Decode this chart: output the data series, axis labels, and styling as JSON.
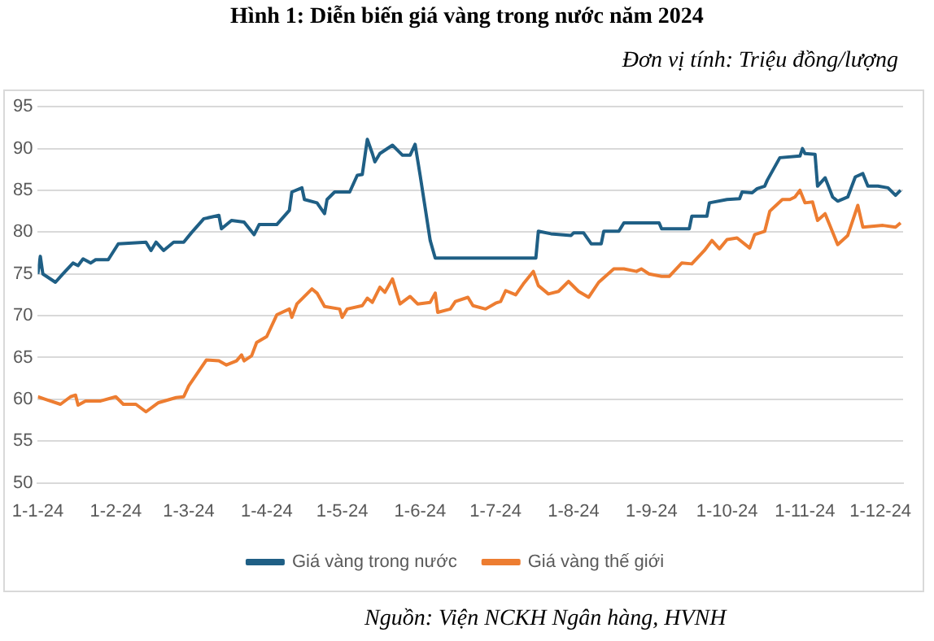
{
  "chart_data": {
    "type": "line",
    "title": "Hình  1: Diễn biến giá vàng trong nước năm 2024",
    "subtitle": "Đơn vị tính: Triệu đồng/lượng",
    "annotations": [
      "Nguồn: Viện NCKH Ngân hàng, HVNH"
    ],
    "xlim": [
      "2024-01-01",
      "2024-12-10"
    ],
    "xticks": [
      {
        "value": "2024-01-01",
        "label": "1-1-24"
      },
      {
        "value": "2024-02-01",
        "label": "1-2-24"
      },
      {
        "value": "2024-03-01",
        "label": "1-3-24"
      },
      {
        "value": "2024-04-01",
        "label": "1-4-24"
      },
      {
        "value": "2024-05-01",
        "label": "1-5-24"
      },
      {
        "value": "2024-06-01",
        "label": "1-6-24"
      },
      {
        "value": "2024-07-01",
        "label": "1-7-24"
      },
      {
        "value": "2024-08-01",
        "label": "1-8-24"
      },
      {
        "value": "2024-09-01",
        "label": "1-9-24"
      },
      {
        "value": "2024-10-01",
        "label": "1-10-24"
      },
      {
        "value": "2024-11-01",
        "label": "1-11-24"
      },
      {
        "value": "2024-12-01",
        "label": "1-12-24"
      }
    ],
    "ylim": [
      50,
      95
    ],
    "yticks": [
      50,
      55,
      60,
      65,
      70,
      75,
      80,
      85,
      90,
      95
    ],
    "grid": "y",
    "legend": "bottom",
    "marker": "none",
    "line_style": "solid",
    "series": [
      {
        "name": "Giá vàng trong nước",
        "color": "#1f5f85",
        "x": [
          "2024-01-01",
          "2024-01-02",
          "2024-01-03",
          "2024-01-08",
          "2024-01-11",
          "2024-01-15",
          "2024-01-17",
          "2024-01-19",
          "2024-01-22",
          "2024-01-24",
          "2024-01-29",
          "2024-02-02",
          "2024-02-13",
          "2024-02-15",
          "2024-02-17",
          "2024-02-20",
          "2024-02-24",
          "2024-02-28",
          "2024-03-02",
          "2024-03-07",
          "2024-03-13",
          "2024-03-14",
          "2024-03-18",
          "2024-03-23",
          "2024-03-27",
          "2024-03-29",
          "2024-04-05",
          "2024-04-10",
          "2024-04-11",
          "2024-04-15",
          "2024-04-16",
          "2024-04-21",
          "2024-04-24",
          "2024-04-25",
          "2024-04-28",
          "2024-05-04",
          "2024-05-07",
          "2024-05-09",
          "2024-05-11",
          "2024-05-13",
          "2024-05-14",
          "2024-05-16",
          "2024-05-21",
          "2024-05-25",
          "2024-05-28",
          "2024-05-30",
          "2024-06-01",
          "2024-06-05",
          "2024-06-07",
          "2024-07-17",
          "2024-07-18",
          "2024-07-23",
          "2024-07-31",
          "2024-08-01",
          "2024-08-05",
          "2024-08-08",
          "2024-08-12",
          "2024-08-13",
          "2024-08-19",
          "2024-08-21",
          "2024-09-04",
          "2024-09-05",
          "2024-09-16",
          "2024-09-17",
          "2024-09-23",
          "2024-09-24",
          "2024-10-01",
          "2024-10-06",
          "2024-10-07",
          "2024-10-11",
          "2024-10-13",
          "2024-10-16",
          "2024-10-17",
          "2024-10-22",
          "2024-10-30",
          "2024-10-31",
          "2024-11-01",
          "2024-11-05",
          "2024-11-06",
          "2024-11-09",
          "2024-11-12",
          "2024-11-14",
          "2024-11-18",
          "2024-11-21",
          "2024-11-24",
          "2024-11-26",
          "2024-11-30",
          "2024-12-04",
          "2024-12-07",
          "2024-12-09"
        ],
        "values": [
          75.0,
          77.1,
          75.0,
          74.0,
          75.0,
          76.3,
          76.0,
          76.8,
          76.3,
          76.7,
          76.7,
          78.6,
          78.8,
          77.8,
          78.8,
          77.8,
          78.8,
          78.8,
          79.9,
          81.6,
          82.0,
          80.4,
          81.4,
          81.2,
          79.7,
          80.9,
          80.9,
          82.6,
          84.8,
          85.3,
          83.9,
          83.5,
          82.2,
          83.9,
          84.8,
          84.8,
          86.8,
          86.9,
          91.1,
          89.4,
          88.4,
          89.4,
          90.4,
          89.2,
          89.2,
          90.5,
          86.8,
          79.0,
          76.9,
          76.9,
          80.1,
          79.8,
          79.6,
          79.9,
          79.9,
          78.6,
          78.6,
          80.1,
          80.1,
          81.1,
          81.1,
          80.4,
          80.4,
          81.9,
          81.9,
          83.5,
          83.9,
          84.0,
          84.8,
          84.7,
          85.2,
          85.5,
          86.2,
          88.9,
          89.1,
          90.0,
          89.4,
          89.3,
          85.5,
          86.5,
          84.2,
          83.7,
          84.2,
          86.6,
          87.0,
          85.5,
          85.5,
          85.3,
          84.4,
          85.0
        ]
      },
      {
        "name": "Giá vàng thế giới",
        "color": "#ed7d31",
        "x": [
          "2024-01-01",
          "2024-01-04",
          "2024-01-10",
          "2024-01-14",
          "2024-01-16",
          "2024-01-17",
          "2024-01-20",
          "2024-01-26",
          "2024-02-01",
          "2024-02-04",
          "2024-02-09",
          "2024-02-13",
          "2024-02-18",
          "2024-02-25",
          "2024-02-28",
          "2024-03-01",
          "2024-03-08",
          "2024-03-13",
          "2024-03-16",
          "2024-03-20",
          "2024-03-22",
          "2024-03-23",
          "2024-03-26",
          "2024-03-28",
          "2024-04-01",
          "2024-04-05",
          "2024-04-10",
          "2024-04-11",
          "2024-04-13",
          "2024-04-19",
          "2024-04-21",
          "2024-04-24",
          "2024-04-30",
          "2024-05-01",
          "2024-05-03",
          "2024-05-09",
          "2024-05-11",
          "2024-05-13",
          "2024-05-16",
          "2024-05-18",
          "2024-05-21",
          "2024-05-24",
          "2024-05-28",
          "2024-05-31",
          "2024-06-05",
          "2024-06-07",
          "2024-06-08",
          "2024-06-13",
          "2024-06-15",
          "2024-06-20",
          "2024-06-22",
          "2024-06-27",
          "2024-07-01",
          "2024-07-03",
          "2024-07-05",
          "2024-07-09",
          "2024-07-12",
          "2024-07-16",
          "2024-07-18",
          "2024-07-22",
          "2024-07-26",
          "2024-07-30",
          "2024-08-03",
          "2024-08-07",
          "2024-08-11",
          "2024-08-17",
          "2024-08-21",
          "2024-08-26",
          "2024-08-28",
          "2024-08-31",
          "2024-09-05",
          "2024-09-08",
          "2024-09-13",
          "2024-09-17",
          "2024-09-22",
          "2024-09-25",
          "2024-09-28",
          "2024-10-01",
          "2024-10-05",
          "2024-10-10",
          "2024-10-12",
          "2024-10-16",
          "2024-10-18",
          "2024-10-23",
          "2024-10-26",
          "2024-10-28",
          "2024-10-30",
          "2024-11-01",
          "2024-11-04",
          "2024-11-05",
          "2024-11-06",
          "2024-11-09",
          "2024-11-14",
          "2024-11-18",
          "2024-11-22",
          "2024-11-24",
          "2024-12-02",
          "2024-12-07",
          "2024-12-09"
        ],
        "values": [
          60.3,
          60.0,
          59.4,
          60.3,
          60.5,
          59.3,
          59.8,
          59.8,
          60.3,
          59.4,
          59.4,
          58.5,
          59.6,
          60.2,
          60.3,
          61.6,
          64.7,
          64.6,
          64.1,
          64.6,
          65.3,
          64.6,
          65.2,
          66.8,
          67.5,
          70.1,
          70.8,
          69.8,
          71.4,
          73.2,
          72.7,
          71.1,
          70.8,
          69.8,
          70.8,
          71.2,
          72.1,
          71.6,
          73.4,
          72.8,
          74.4,
          71.4,
          72.3,
          71.4,
          71.6,
          72.7,
          70.4,
          70.8,
          71.7,
          72.2,
          71.2,
          70.8,
          71.5,
          71.7,
          73.0,
          72.5,
          73.8,
          75.3,
          73.6,
          72.6,
          72.9,
          74.1,
          72.9,
          72.2,
          74.0,
          75.6,
          75.6,
          75.3,
          75.6,
          75.0,
          74.7,
          74.7,
          76.3,
          76.2,
          77.8,
          79.0,
          78.0,
          79.1,
          79.3,
          78.1,
          79.7,
          80.1,
          82.5,
          83.9,
          83.9,
          84.2,
          85.0,
          83.5,
          83.6,
          82.5,
          81.4,
          82.2,
          78.5,
          79.6,
          83.2,
          80.6,
          80.8,
          80.6,
          81.1
        ]
      }
    ]
  }
}
